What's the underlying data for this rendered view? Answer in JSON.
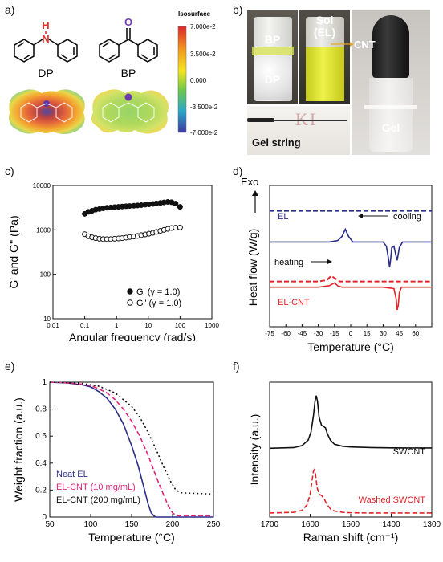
{
  "panels": {
    "a": {
      "label": "a)",
      "molecules": [
        {
          "name": "DP",
          "atom": "N",
          "atom_h": "H",
          "atom_color": "#e0312d"
        },
        {
          "name": "BP",
          "atom": "O",
          "atom_color": "#7b3fb5"
        }
      ],
      "colorbar": {
        "title": "Isosurface",
        "ticks": [
          "7.000e-2",
          "3.500e-2",
          "0.000",
          "-3.500e-2",
          "-7.000e-2"
        ],
        "colors": [
          "#e0262b",
          "#f39a1e",
          "#f4e61f",
          "#6dc84a",
          "#2aa7c9",
          "#3b3aa0"
        ]
      }
    },
    "b": {
      "label": "b)",
      "texts": {
        "bp": "BP",
        "dp": "DP",
        "sol": "Sol",
        "sol_sub": "(EL)",
        "cnt": "CNT",
        "gel": "Gel",
        "gel_string": "Gel string"
      }
    },
    "c": {
      "label": "c)"
    },
    "d": {
      "label": "d)"
    },
    "e": {
      "label": "e)"
    },
    "f": {
      "label": "f)"
    }
  },
  "chart_data": [
    {
      "id": "c",
      "type": "scatter",
      "xlabel": "Angular frequency (rad/s)",
      "ylabel": "G' and G'' (Pa)",
      "xscale": "log",
      "yscale": "log",
      "xlim": [
        0.01,
        1000
      ],
      "ylim": [
        10,
        10000
      ],
      "xticks": [
        0.01,
        0.1,
        1,
        10,
        100,
        1000
      ],
      "xtick_labels": [
        "0.01",
        "0.1",
        "1",
        "10",
        "100",
        "1000"
      ],
      "yticks": [
        10,
        100,
        1000,
        10000
      ],
      "ytick_labels": [
        "10",
        "100",
        "1000",
        "10000"
      ],
      "legend_position": "bottom-right",
      "series": [
        {
          "name": "G' (γ = 1.0)",
          "marker": "filled",
          "x": [
            0.1,
            0.13,
            0.17,
            0.22,
            0.29,
            0.38,
            0.5,
            0.66,
            0.87,
            1.15,
            1.5,
            2,
            2.6,
            3.5,
            4.6,
            6,
            8,
            10.5,
            14,
            18,
            24,
            31,
            41,
            54,
            72,
            100
          ],
          "y": [
            2300,
            2550,
            2700,
            2850,
            2950,
            3050,
            3150,
            3200,
            3250,
            3300,
            3350,
            3400,
            3450,
            3500,
            3550,
            3600,
            3700,
            3750,
            3850,
            3950,
            4050,
            4150,
            4250,
            4200,
            3900,
            3300
          ]
        },
        {
          "name": "G\" (γ = 1.0)",
          "marker": "open",
          "x": [
            0.1,
            0.13,
            0.17,
            0.22,
            0.29,
            0.38,
            0.5,
            0.66,
            0.87,
            1.15,
            1.5,
            2,
            2.6,
            3.5,
            4.6,
            6,
            8,
            10.5,
            14,
            18,
            24,
            31,
            41,
            54,
            72,
            100
          ],
          "y": [
            800,
            720,
            680,
            650,
            630,
            620,
            620,
            620,
            630,
            640,
            650,
            670,
            690,
            710,
            730,
            760,
            790,
            820,
            860,
            900,
            950,
            1000,
            1050,
            1100,
            1120,
            1130
          ]
        }
      ]
    },
    {
      "id": "d",
      "type": "line",
      "xlabel": "Temperature (°C)",
      "ylabel": "Heat flow (W/g)",
      "y_arrow_label": "Exo",
      "xlim": [
        -75,
        75
      ],
      "xticks": [
        -75,
        -60,
        -45,
        -30,
        -15,
        0,
        15,
        30,
        45,
        60
      ],
      "annotations": {
        "el": "EL",
        "el_cnt": "EL-CNT",
        "cooling": "cooling",
        "heating": "heating"
      },
      "series": [
        {
          "name": "EL cooling",
          "color": "#2b2d86",
          "dash": true,
          "x": [
            -75,
            75
          ],
          "y": [
            0.82,
            0.82
          ]
        },
        {
          "name": "EL heating",
          "color": "#2b2d86",
          "dash": false,
          "x": [
            -75,
            -20,
            -12,
            -8,
            -5,
            -2,
            2,
            10,
            20,
            30,
            33,
            35,
            36,
            37,
            38,
            40,
            42,
            43,
            45,
            48,
            55,
            75
          ],
          "y": [
            0.6,
            0.6,
            0.61,
            0.64,
            0.69,
            0.64,
            0.6,
            0.6,
            0.6,
            0.6,
            0.57,
            0.48,
            0.42,
            0.48,
            0.56,
            0.57,
            0.5,
            0.47,
            0.56,
            0.6,
            0.6,
            0.6
          ]
        },
        {
          "name": "EL-CNT cooling",
          "color": "#e2252a",
          "dash": true,
          "x": [
            -75,
            -30,
            -22,
            -18,
            -14,
            -10,
            0,
            75
          ],
          "y": [
            0.32,
            0.32,
            0.33,
            0.36,
            0.34,
            0.32,
            0.32,
            0.32
          ]
        },
        {
          "name": "EL-CNT heating",
          "color": "#e2252a",
          "dash": false,
          "x": [
            -75,
            -30,
            -20,
            -15,
            -12,
            -8,
            0,
            30,
            40,
            42,
            43,
            44,
            45,
            47,
            50,
            75
          ],
          "y": [
            0.28,
            0.28,
            0.29,
            0.31,
            0.29,
            0.28,
            0.28,
            0.28,
            0.27,
            0.2,
            0.12,
            0.15,
            0.24,
            0.28,
            0.28,
            0.28
          ]
        }
      ]
    },
    {
      "id": "e",
      "type": "line",
      "xlabel": "Temperature (°C)",
      "ylabel": "Weight fraction (a.u.)",
      "xlim": [
        50,
        250
      ],
      "ylim": [
        0,
        1
      ],
      "xticks": [
        50,
        100,
        150,
        200,
        250
      ],
      "yticks": [
        0,
        0.2,
        0.4,
        0.6,
        0.8,
        1
      ],
      "legend_position": "bottom-left",
      "series": [
        {
          "name": "Neat EL",
          "color": "#2b2d86",
          "dash": "solid",
          "x": [
            50,
            70,
            90,
            100,
            110,
            120,
            130,
            140,
            150,
            158,
            165,
            170,
            174,
            178,
            180,
            200,
            250
          ],
          "y": [
            1,
            0.995,
            0.98,
            0.965,
            0.93,
            0.88,
            0.8,
            0.69,
            0.53,
            0.38,
            0.22,
            0.1,
            0.03,
            0.005,
            0,
            0,
            0
          ]
        },
        {
          "name": "EL-CNT (10 mg/mL)",
          "color": "#e2257a",
          "dash": "dashed",
          "x": [
            50,
            70,
            90,
            100,
            110,
            120,
            130,
            140,
            150,
            160,
            170,
            180,
            188,
            195,
            200,
            205,
            208,
            250
          ],
          "y": [
            1,
            0.995,
            0.985,
            0.975,
            0.95,
            0.92,
            0.87,
            0.8,
            0.71,
            0.6,
            0.46,
            0.3,
            0.18,
            0.08,
            0.03,
            0.01,
            0.01,
            0.01
          ]
        },
        {
          "name": "EL-CNT (200 mg/mL)",
          "color": "#111111",
          "dash": "dotted",
          "x": [
            50,
            70,
            90,
            110,
            130,
            150,
            160,
            170,
            180,
            190,
            198,
            203,
            207,
            210,
            250
          ],
          "y": [
            1,
            0.997,
            0.99,
            0.97,
            0.92,
            0.82,
            0.74,
            0.63,
            0.5,
            0.36,
            0.26,
            0.21,
            0.19,
            0.18,
            0.17
          ]
        }
      ]
    },
    {
      "id": "f",
      "type": "line",
      "xlabel": "Raman shift (cm⁻¹)",
      "ylabel": "Intensity (a.u.)",
      "xlim": [
        1700,
        1300
      ],
      "xticks": [
        1700,
        1600,
        1500,
        1400,
        1300
      ],
      "xtick_labels": [
        "1700",
        "1600",
        "1500",
        "1400",
        "1300"
      ],
      "series": [
        {
          "name": "SWCNT",
          "color": "#111111",
          "dash": false,
          "x": [
            1700,
            1640,
            1620,
            1605,
            1598,
            1592,
            1588,
            1585,
            1582,
            1578,
            1572,
            1566,
            1562,
            1558,
            1550,
            1540,
            1520,
            1500,
            1450,
            1400,
            1300
          ],
          "y": [
            0.51,
            0.515,
            0.53,
            0.57,
            0.63,
            0.75,
            0.86,
            0.9,
            0.86,
            0.74,
            0.68,
            0.67,
            0.66,
            0.62,
            0.57,
            0.54,
            0.525,
            0.52,
            0.515,
            0.513,
            0.512
          ]
        },
        {
          "name": "Washed SWCNT",
          "color": "#e2252a",
          "dash": true,
          "x": [
            1700,
            1640,
            1620,
            1608,
            1600,
            1595,
            1592,
            1590,
            1587,
            1583,
            1578,
            1572,
            1566,
            1560,
            1550,
            1540,
            1520,
            1500,
            1450,
            1400,
            1300
          ],
          "y": [
            0.03,
            0.035,
            0.05,
            0.09,
            0.17,
            0.28,
            0.34,
            0.35,
            0.32,
            0.22,
            0.17,
            0.16,
            0.14,
            0.1,
            0.06,
            0.045,
            0.035,
            0.032,
            0.03,
            0.03,
            0.03
          ]
        }
      ]
    }
  ]
}
